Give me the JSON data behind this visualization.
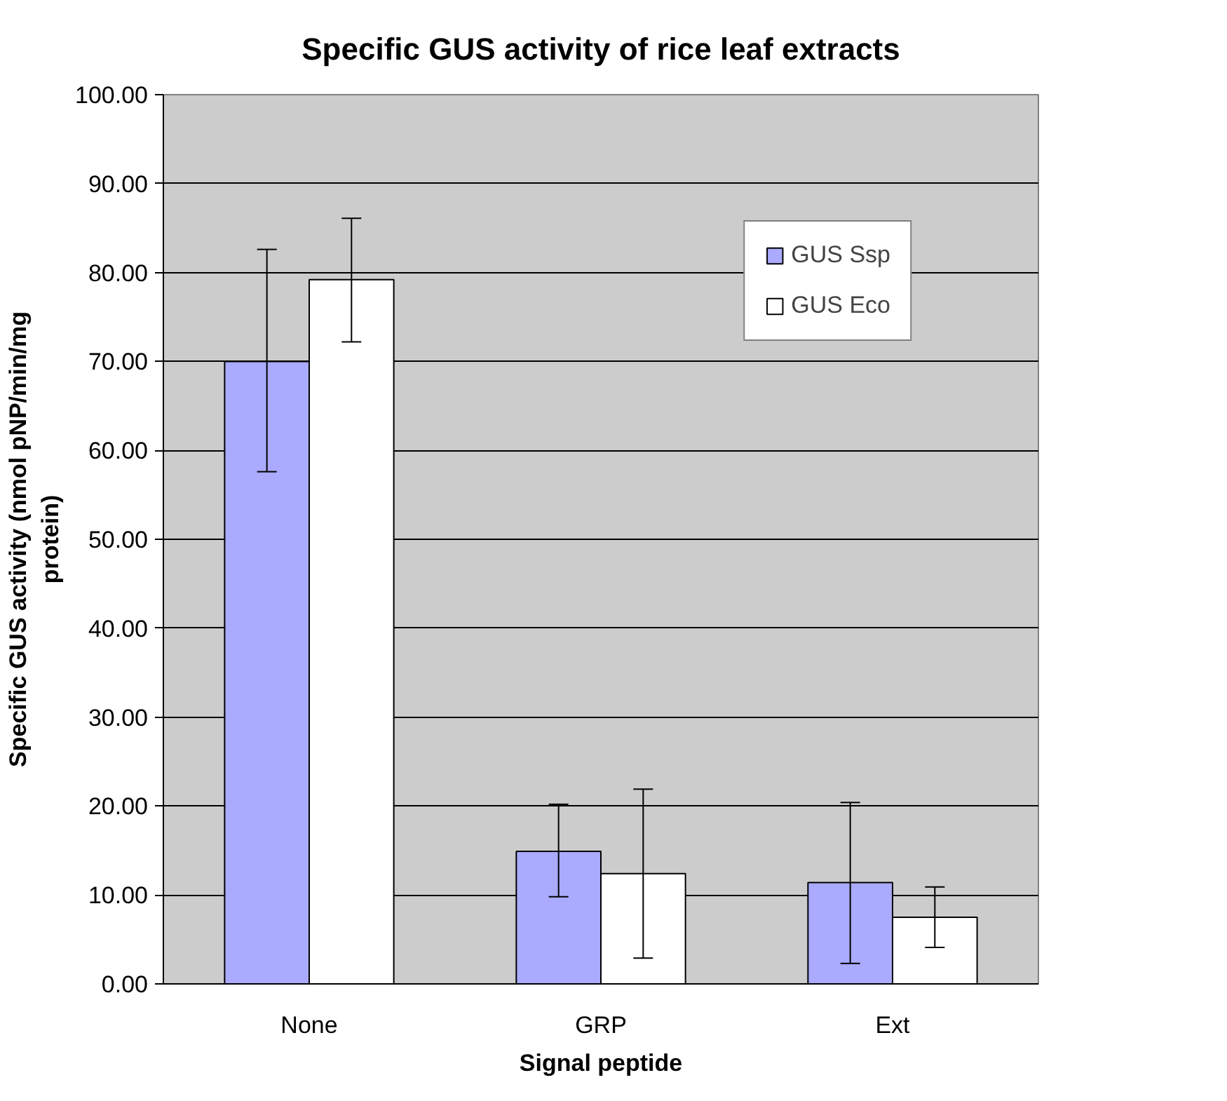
{
  "chart_data": {
    "type": "bar",
    "title": "Specific GUS activity of rice leaf extracts",
    "xlabel": "Signal peptide",
    "ylabel": "Specific GUS activity (nmol pNP/min/mg protein)",
    "categories": [
      "None",
      "GRP",
      "Ext"
    ],
    "series": [
      {
        "name": "GUS Ssp",
        "color": "#aaaaff",
        "values": [
          70.0,
          14.9,
          11.4
        ],
        "errors": [
          [
            57.6,
            82.6
          ],
          [
            9.8,
            20.2
          ],
          [
            2.3,
            20.4
          ]
        ]
      },
      {
        "name": "GUS Eco",
        "color": "#ffffff",
        "values": [
          79.2,
          12.4,
          7.5
        ],
        "errors": [
          [
            72.2,
            86.1
          ],
          [
            2.9,
            21.9
          ],
          [
            4.1,
            10.9
          ]
        ]
      }
    ],
    "ylim": [
      0,
      100
    ],
    "yticks": [
      {
        "value": 0,
        "label": "0.00"
      },
      {
        "value": 10,
        "label": "10.00"
      },
      {
        "value": 20,
        "label": "20.00"
      },
      {
        "value": 30,
        "label": "30.00"
      },
      {
        "value": 40,
        "label": "40.00"
      },
      {
        "value": 50,
        "label": "50.00"
      },
      {
        "value": 60,
        "label": "60.00"
      },
      {
        "value": 70,
        "label": "70.00"
      },
      {
        "value": 80,
        "label": "80.00"
      },
      {
        "value": 90,
        "label": "90.00"
      },
      {
        "value": 100,
        "label": "100.00"
      }
    ],
    "grid": "y",
    "legend": "top right"
  }
}
